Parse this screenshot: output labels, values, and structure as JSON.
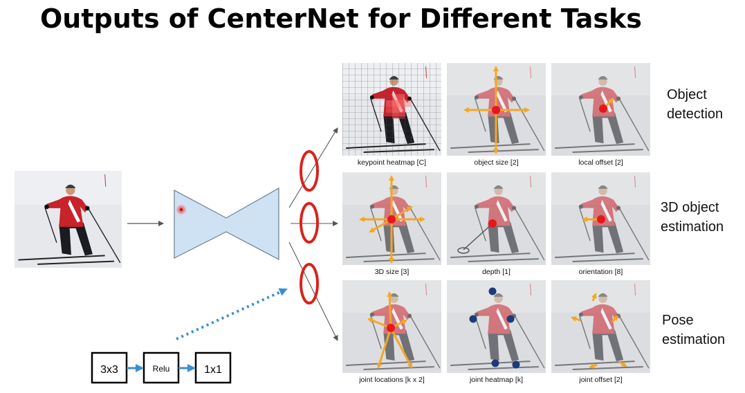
{
  "title": "Outputs of CenterNet for Different Tasks",
  "colors": {
    "network_fill": "#cfe2f3",
    "network_stroke": "#6b7d8e",
    "ellipse": "#d8231b",
    "center_point": "#e8161b",
    "vector": "#f5a623",
    "joint": "#1d3a78",
    "dotted_arrow": "#3b8fd0",
    "heatmap": "#ff6b6b",
    "jacket": "#c8222b",
    "snow": "#e6e8ec"
  },
  "icons": {
    "input_image": "skier-photo",
    "network": "encoder-decoder-hourglass"
  },
  "rows": [
    {
      "label_lines": [
        "Object",
        "detection"
      ],
      "panels": [
        {
          "caption": "keypoint heatmap [C]",
          "overlay": "heatmap-grid"
        },
        {
          "caption": "object size [2]",
          "overlay": "size-cross"
        },
        {
          "caption": "local offset [2]",
          "overlay": "offset"
        }
      ]
    },
    {
      "label_lines": [
        "3D object",
        "estimation"
      ],
      "panels": [
        {
          "caption": "3D size [3]",
          "overlay": "size-cross"
        },
        {
          "caption": "depth [1]",
          "overlay": "depth"
        },
        {
          "caption": "orientation [8]",
          "overlay": "orientation"
        }
      ]
    },
    {
      "label_lines": [
        "Pose",
        "estimation"
      ],
      "panels": [
        {
          "caption": "joint locations [k x 2]",
          "overlay": "joint-vectors"
        },
        {
          "caption": "joint heatmap [k]",
          "overlay": "joint-dots"
        },
        {
          "caption": "joint offset [2]",
          "overlay": "joint-offsets"
        }
      ]
    }
  ],
  "head_layers": [
    "3x3",
    "Relu",
    "1x1"
  ]
}
